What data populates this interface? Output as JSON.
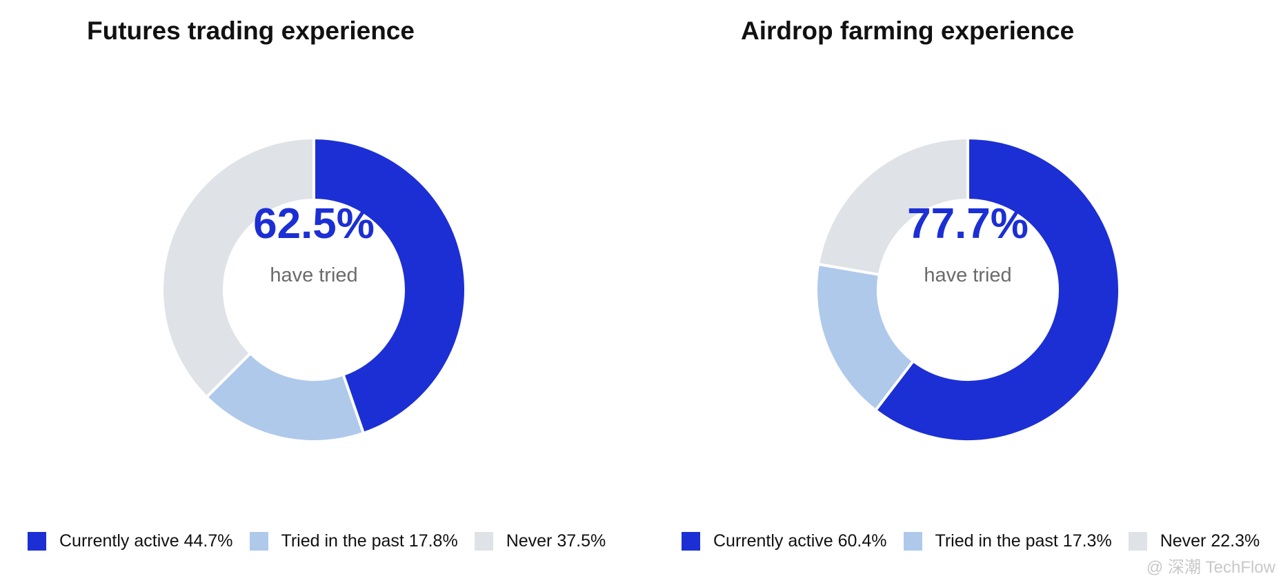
{
  "colors": {
    "currently_active": "#1c2fd4",
    "tried_in_past": "#afc9eb",
    "never": "#dfe2e7",
    "center_value": "#1c2fd4",
    "center_label": "#6b6b6b"
  },
  "chart_data": [
    {
      "type": "pie",
      "title": "Futures trading experience",
      "center_value": "62.5%",
      "center_label": "have tried",
      "legend_position": "bottom",
      "slices": [
        {
          "key": "currently_active",
          "label": "Currently active 44.7%",
          "value": 44.7
        },
        {
          "key": "tried_in_past",
          "label": "Tried in the past 17.8%",
          "value": 17.8
        },
        {
          "key": "never",
          "label": "Never 37.5%",
          "value": 37.5
        }
      ]
    },
    {
      "type": "pie",
      "title": "Airdrop farming experience",
      "center_value": "77.7%",
      "center_label": "have tried",
      "legend_position": "bottom",
      "slices": [
        {
          "key": "currently_active",
          "label": "Currently active 60.4%",
          "value": 60.4
        },
        {
          "key": "tried_in_past",
          "label": "Tried in the past 17.3%",
          "value": 17.3
        },
        {
          "key": "never",
          "label": "Never 22.3%",
          "value": 22.3
        }
      ]
    }
  ],
  "watermark": "@ 深潮 TechFlow"
}
